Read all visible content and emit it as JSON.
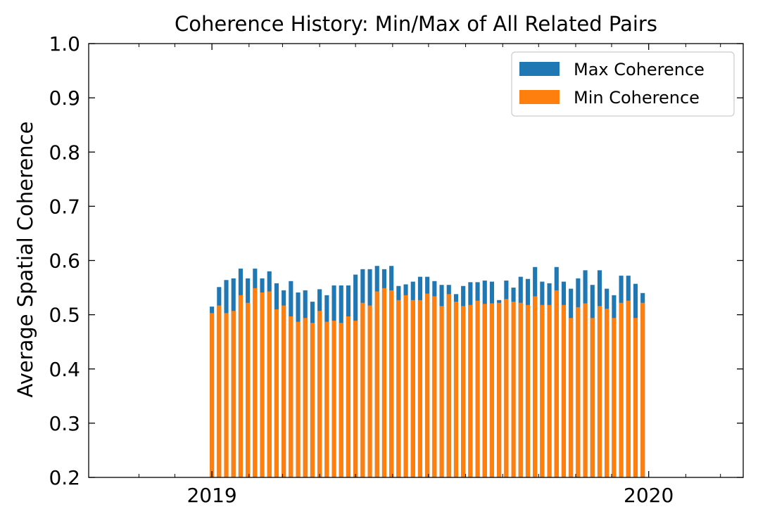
{
  "chart_data": {
    "type": "bar",
    "title": "Coherence History: Min/Max of All Related Pairs",
    "xlabel": "",
    "ylabel": "Average Spatial Coherence",
    "ylim": [
      0.2,
      1.0
    ],
    "xlim": [
      "2018-09-20",
      "2020-03-20"
    ],
    "yticks": [
      "0.2",
      "0.3",
      "0.4",
      "0.5",
      "0.6",
      "0.7",
      "0.8",
      "0.9",
      "1.0"
    ],
    "xticks": [
      {
        "date": "2019-01-01",
        "label": "2019"
      },
      {
        "date": "2020-01-01",
        "label": "2020"
      }
    ],
    "xticks_minor": [
      "2018-11-01",
      "2018-12-01",
      "2019-02-01",
      "2019-03-01",
      "2019-04-01",
      "2019-05-01",
      "2019-06-01",
      "2019-07-01",
      "2019-08-01",
      "2019-09-01",
      "2019-10-01",
      "2019-11-01",
      "2019-12-01",
      "2020-02-01",
      "2020-03-01"
    ],
    "grid": false,
    "legend_position": "top-right",
    "series": [
      {
        "name": "Max Coherence",
        "color": "#1f77b4",
        "x": [
          "2019-01-01",
          "2019-01-07",
          "2019-01-13",
          "2019-01-19",
          "2019-01-25",
          "2019-01-31",
          "2019-02-06",
          "2019-02-12",
          "2019-02-18",
          "2019-02-24",
          "2019-03-02",
          "2019-03-08",
          "2019-03-14",
          "2019-03-20",
          "2019-03-26",
          "2019-04-01",
          "2019-04-07",
          "2019-04-13",
          "2019-04-19",
          "2019-04-25",
          "2019-05-01",
          "2019-05-07",
          "2019-05-13",
          "2019-05-19",
          "2019-05-25",
          "2019-05-31",
          "2019-06-06",
          "2019-06-12",
          "2019-06-18",
          "2019-06-24",
          "2019-06-30",
          "2019-07-06",
          "2019-07-12",
          "2019-07-18",
          "2019-07-24",
          "2019-07-30",
          "2019-08-05",
          "2019-08-11",
          "2019-08-17",
          "2019-08-23",
          "2019-08-29",
          "2019-09-04",
          "2019-09-10",
          "2019-09-16",
          "2019-09-22",
          "2019-09-28",
          "2019-10-04",
          "2019-10-10",
          "2019-10-16",
          "2019-10-22",
          "2019-10-28",
          "2019-11-03",
          "2019-11-09",
          "2019-11-15",
          "2019-11-21",
          "2019-11-27",
          "2019-12-03",
          "2019-12-09",
          "2019-12-15",
          "2019-12-21",
          "2019-12-27"
        ],
        "values": [
          0.515,
          0.551,
          0.564,
          0.567,
          0.585,
          0.567,
          0.585,
          0.567,
          0.58,
          0.558,
          0.545,
          0.562,
          0.541,
          0.545,
          0.524,
          0.547,
          0.536,
          0.554,
          0.554,
          0.554,
          0.574,
          0.584,
          0.584,
          0.59,
          0.584,
          0.59,
          0.553,
          0.556,
          0.561,
          0.57,
          0.57,
          0.562,
          0.555,
          0.555,
          0.538,
          0.553,
          0.56,
          0.56,
          0.563,
          0.561,
          0.527,
          0.563,
          0.55,
          0.57,
          0.566,
          0.588,
          0.561,
          0.558,
          0.588,
          0.561,
          0.548,
          0.567,
          0.582,
          0.555,
          0.582,
          0.548,
          0.536,
          0.572,
          0.572,
          0.557,
          0.54
        ]
      },
      {
        "name": "Min Coherence",
        "color": "#ff7f0e",
        "x": [
          "2019-01-01",
          "2019-01-07",
          "2019-01-13",
          "2019-01-19",
          "2019-01-25",
          "2019-01-31",
          "2019-02-06",
          "2019-02-12",
          "2019-02-18",
          "2019-02-24",
          "2019-03-02",
          "2019-03-08",
          "2019-03-14",
          "2019-03-20",
          "2019-03-26",
          "2019-04-01",
          "2019-04-07",
          "2019-04-13",
          "2019-04-19",
          "2019-04-25",
          "2019-05-01",
          "2019-05-07",
          "2019-05-13",
          "2019-05-19",
          "2019-05-25",
          "2019-05-31",
          "2019-06-06",
          "2019-06-12",
          "2019-06-18",
          "2019-06-24",
          "2019-06-30",
          "2019-07-06",
          "2019-07-12",
          "2019-07-18",
          "2019-07-24",
          "2019-07-30",
          "2019-08-05",
          "2019-08-11",
          "2019-08-17",
          "2019-08-23",
          "2019-08-29",
          "2019-09-04",
          "2019-09-10",
          "2019-09-16",
          "2019-09-22",
          "2019-09-28",
          "2019-10-04",
          "2019-10-10",
          "2019-10-16",
          "2019-10-22",
          "2019-10-28",
          "2019-11-03",
          "2019-11-09",
          "2019-11-15",
          "2019-11-21",
          "2019-11-27",
          "2019-12-03",
          "2019-12-09",
          "2019-12-15",
          "2019-12-21",
          "2019-12-27"
        ],
        "values": [
          0.503,
          0.517,
          0.503,
          0.507,
          0.536,
          0.522,
          0.549,
          0.541,
          0.543,
          0.51,
          0.517,
          0.497,
          0.487,
          0.494,
          0.485,
          0.507,
          0.487,
          0.489,
          0.485,
          0.497,
          0.489,
          0.522,
          0.517,
          0.543,
          0.549,
          0.545,
          0.527,
          0.536,
          0.527,
          0.527,
          0.539,
          0.534,
          0.516,
          0.538,
          0.524,
          0.516,
          0.518,
          0.526,
          0.52,
          0.521,
          0.522,
          0.529,
          0.524,
          0.522,
          0.518,
          0.534,
          0.518,
          0.518,
          0.545,
          0.518,
          0.494,
          0.514,
          0.521,
          0.494,
          0.516,
          0.511,
          0.494,
          0.522,
          0.526,
          0.494,
          0.522
        ]
      }
    ]
  }
}
